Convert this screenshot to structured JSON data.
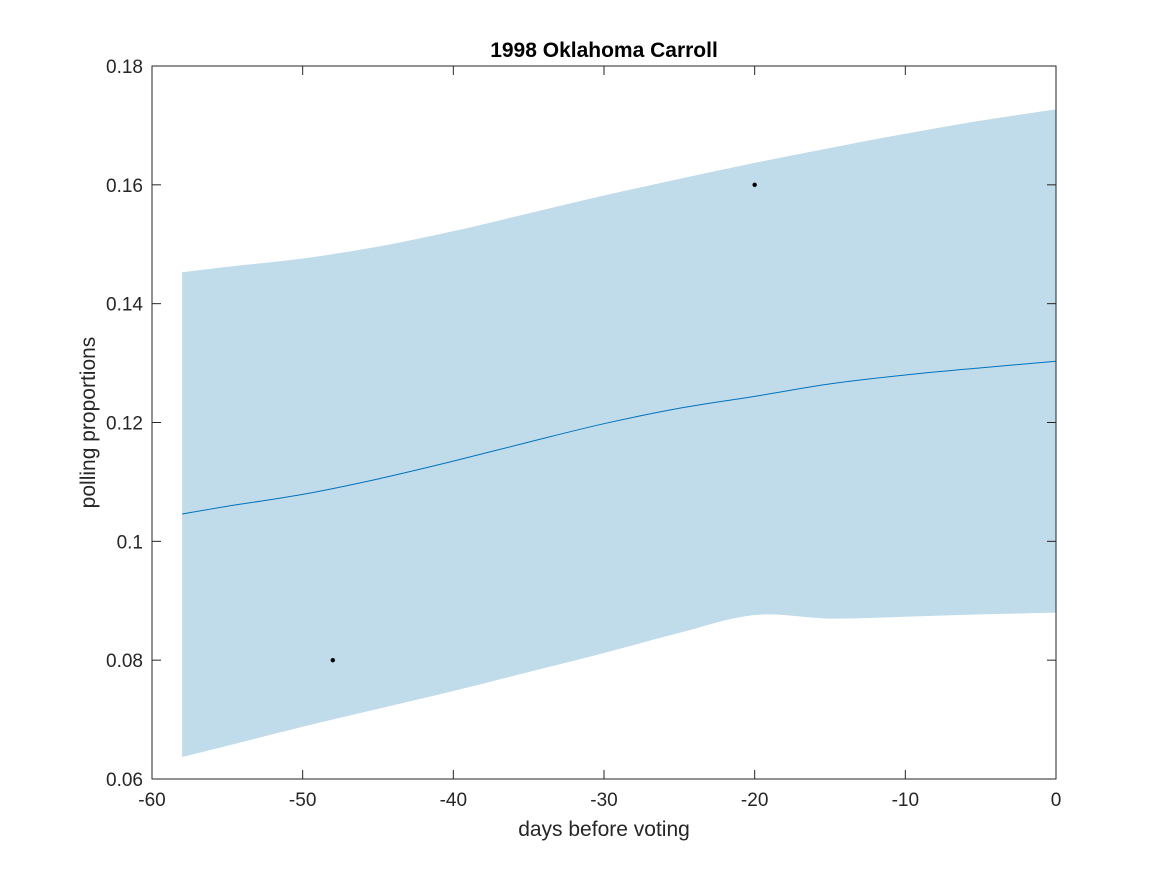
{
  "chart_data": {
    "type": "line",
    "title": "1998 Oklahoma Carroll",
    "xlabel": "days before voting",
    "ylabel": "polling proportions",
    "xlim": [
      -60,
      0
    ],
    "ylim": [
      0.06,
      0.18
    ],
    "xticks": [
      -60,
      -50,
      -40,
      -30,
      -20,
      -10,
      0
    ],
    "xtick_labels": [
      "-60",
      "-50",
      "-40",
      "-30",
      "-20",
      "-10",
      "0"
    ],
    "yticks": [
      0.06,
      0.08,
      0.1,
      0.12,
      0.14,
      0.16,
      0.18
    ],
    "ytick_labels": [
      "0.06",
      "0.08",
      "0.1",
      "0.12",
      "0.14",
      "0.16",
      "0.18"
    ],
    "grid": false,
    "colors": {
      "band": "#c0dcea",
      "line": "#0072bd",
      "points": "#000000",
      "axes": "#262626"
    },
    "band": {
      "x": [
        -58,
        -55,
        -50,
        -45,
        -40,
        -35,
        -30,
        -25,
        -20,
        -15,
        -10,
        -5,
        0
      ],
      "upper": [
        0.1453,
        0.1462,
        0.1476,
        0.1496,
        0.1522,
        0.1552,
        0.1582,
        0.161,
        0.1637,
        0.1662,
        0.1686,
        0.1708,
        0.1727
      ],
      "lower": [
        0.0637,
        0.0656,
        0.0688,
        0.0718,
        0.0748,
        0.078,
        0.0812,
        0.0846,
        0.0876,
        0.087,
        0.0873,
        0.0877,
        0.088
      ]
    },
    "series": [
      {
        "x": [
          -58,
          -55,
          -50,
          -45,
          -40,
          -35,
          -30,
          -25,
          -20,
          -15,
          -10,
          -5,
          0
        ],
        "values": [
          0.1046,
          0.1059,
          0.1079,
          0.1105,
          0.1135,
          0.1167,
          0.1198,
          0.1224,
          0.1244,
          0.1265,
          0.128,
          0.1292,
          0.1303
        ]
      }
    ],
    "points": [
      {
        "x": -48,
        "y": 0.08
      },
      {
        "x": -20,
        "y": 0.16
      }
    ]
  }
}
